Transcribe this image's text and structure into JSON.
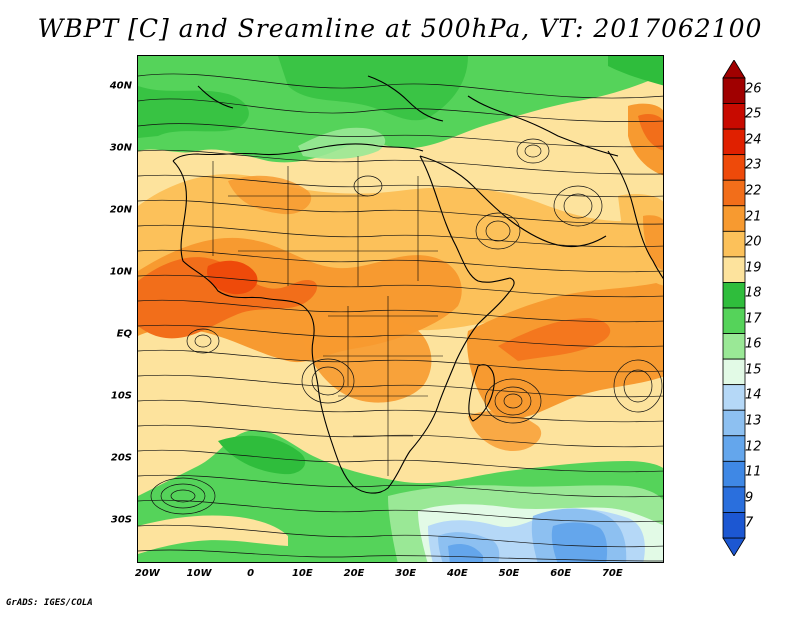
{
  "title": "WBPT [C] and Sreamline at 500hPa, VT: 2017062100",
  "credit": "GrADS: IGES/COLA",
  "axes": {
    "y_ticks": [
      {
        "label": "40N",
        "lat": 40
      },
      {
        "label": "30N",
        "lat": 30
      },
      {
        "label": "20N",
        "lat": 20
      },
      {
        "label": "10N",
        "lat": 10
      },
      {
        "label": "EQ",
        "lat": 0
      },
      {
        "label": "10S",
        "lat": -10
      },
      {
        "label": "20S",
        "lat": -20
      },
      {
        "label": "30S",
        "lat": -30
      }
    ],
    "x_ticks": [
      {
        "label": "20W",
        "lon": -20
      },
      {
        "label": "10W",
        "lon": -10
      },
      {
        "label": "0",
        "lon": 0
      },
      {
        "label": "10E",
        "lon": 10
      },
      {
        "label": "20E",
        "lon": 20
      },
      {
        "label": "30E",
        "lon": 30
      },
      {
        "label": "40E",
        "lon": 40
      },
      {
        "label": "50E",
        "lon": 50
      },
      {
        "label": "60E",
        "lon": 60
      },
      {
        "label": "70E",
        "lon": 70
      }
    ]
  },
  "colorbar": {
    "levels": [
      {
        "label": "26",
        "color": "#a00000"
      },
      {
        "label": "25",
        "color": "#c80a00"
      },
      {
        "label": "24",
        "color": "#e02000"
      },
      {
        "label": "23",
        "color": "#ee4a0a"
      },
      {
        "label": "22",
        "color": "#f26e1a"
      },
      {
        "label": "21",
        "color": "#f79a30"
      },
      {
        "label": "20",
        "color": "#fcc15a"
      },
      {
        "label": "19",
        "color": "#fde39d"
      },
      {
        "label": "18",
        "color": "#2fbd3c"
      },
      {
        "label": "17",
        "color": "#55d35a"
      },
      {
        "label": "16",
        "color": "#9ae896"
      },
      {
        "label": "15",
        "color": "#e2fae6"
      },
      {
        "label": "14",
        "color": "#b5d8f7"
      },
      {
        "label": "13",
        "color": "#8dc0f1"
      },
      {
        "label": "12",
        "color": "#64a6ec"
      },
      {
        "label": "11",
        "color": "#3f88e5"
      },
      {
        "label": "9",
        "color": "#2a6fdd"
      },
      {
        "label": "7",
        "color": "#1c57d2"
      }
    ]
  }
}
